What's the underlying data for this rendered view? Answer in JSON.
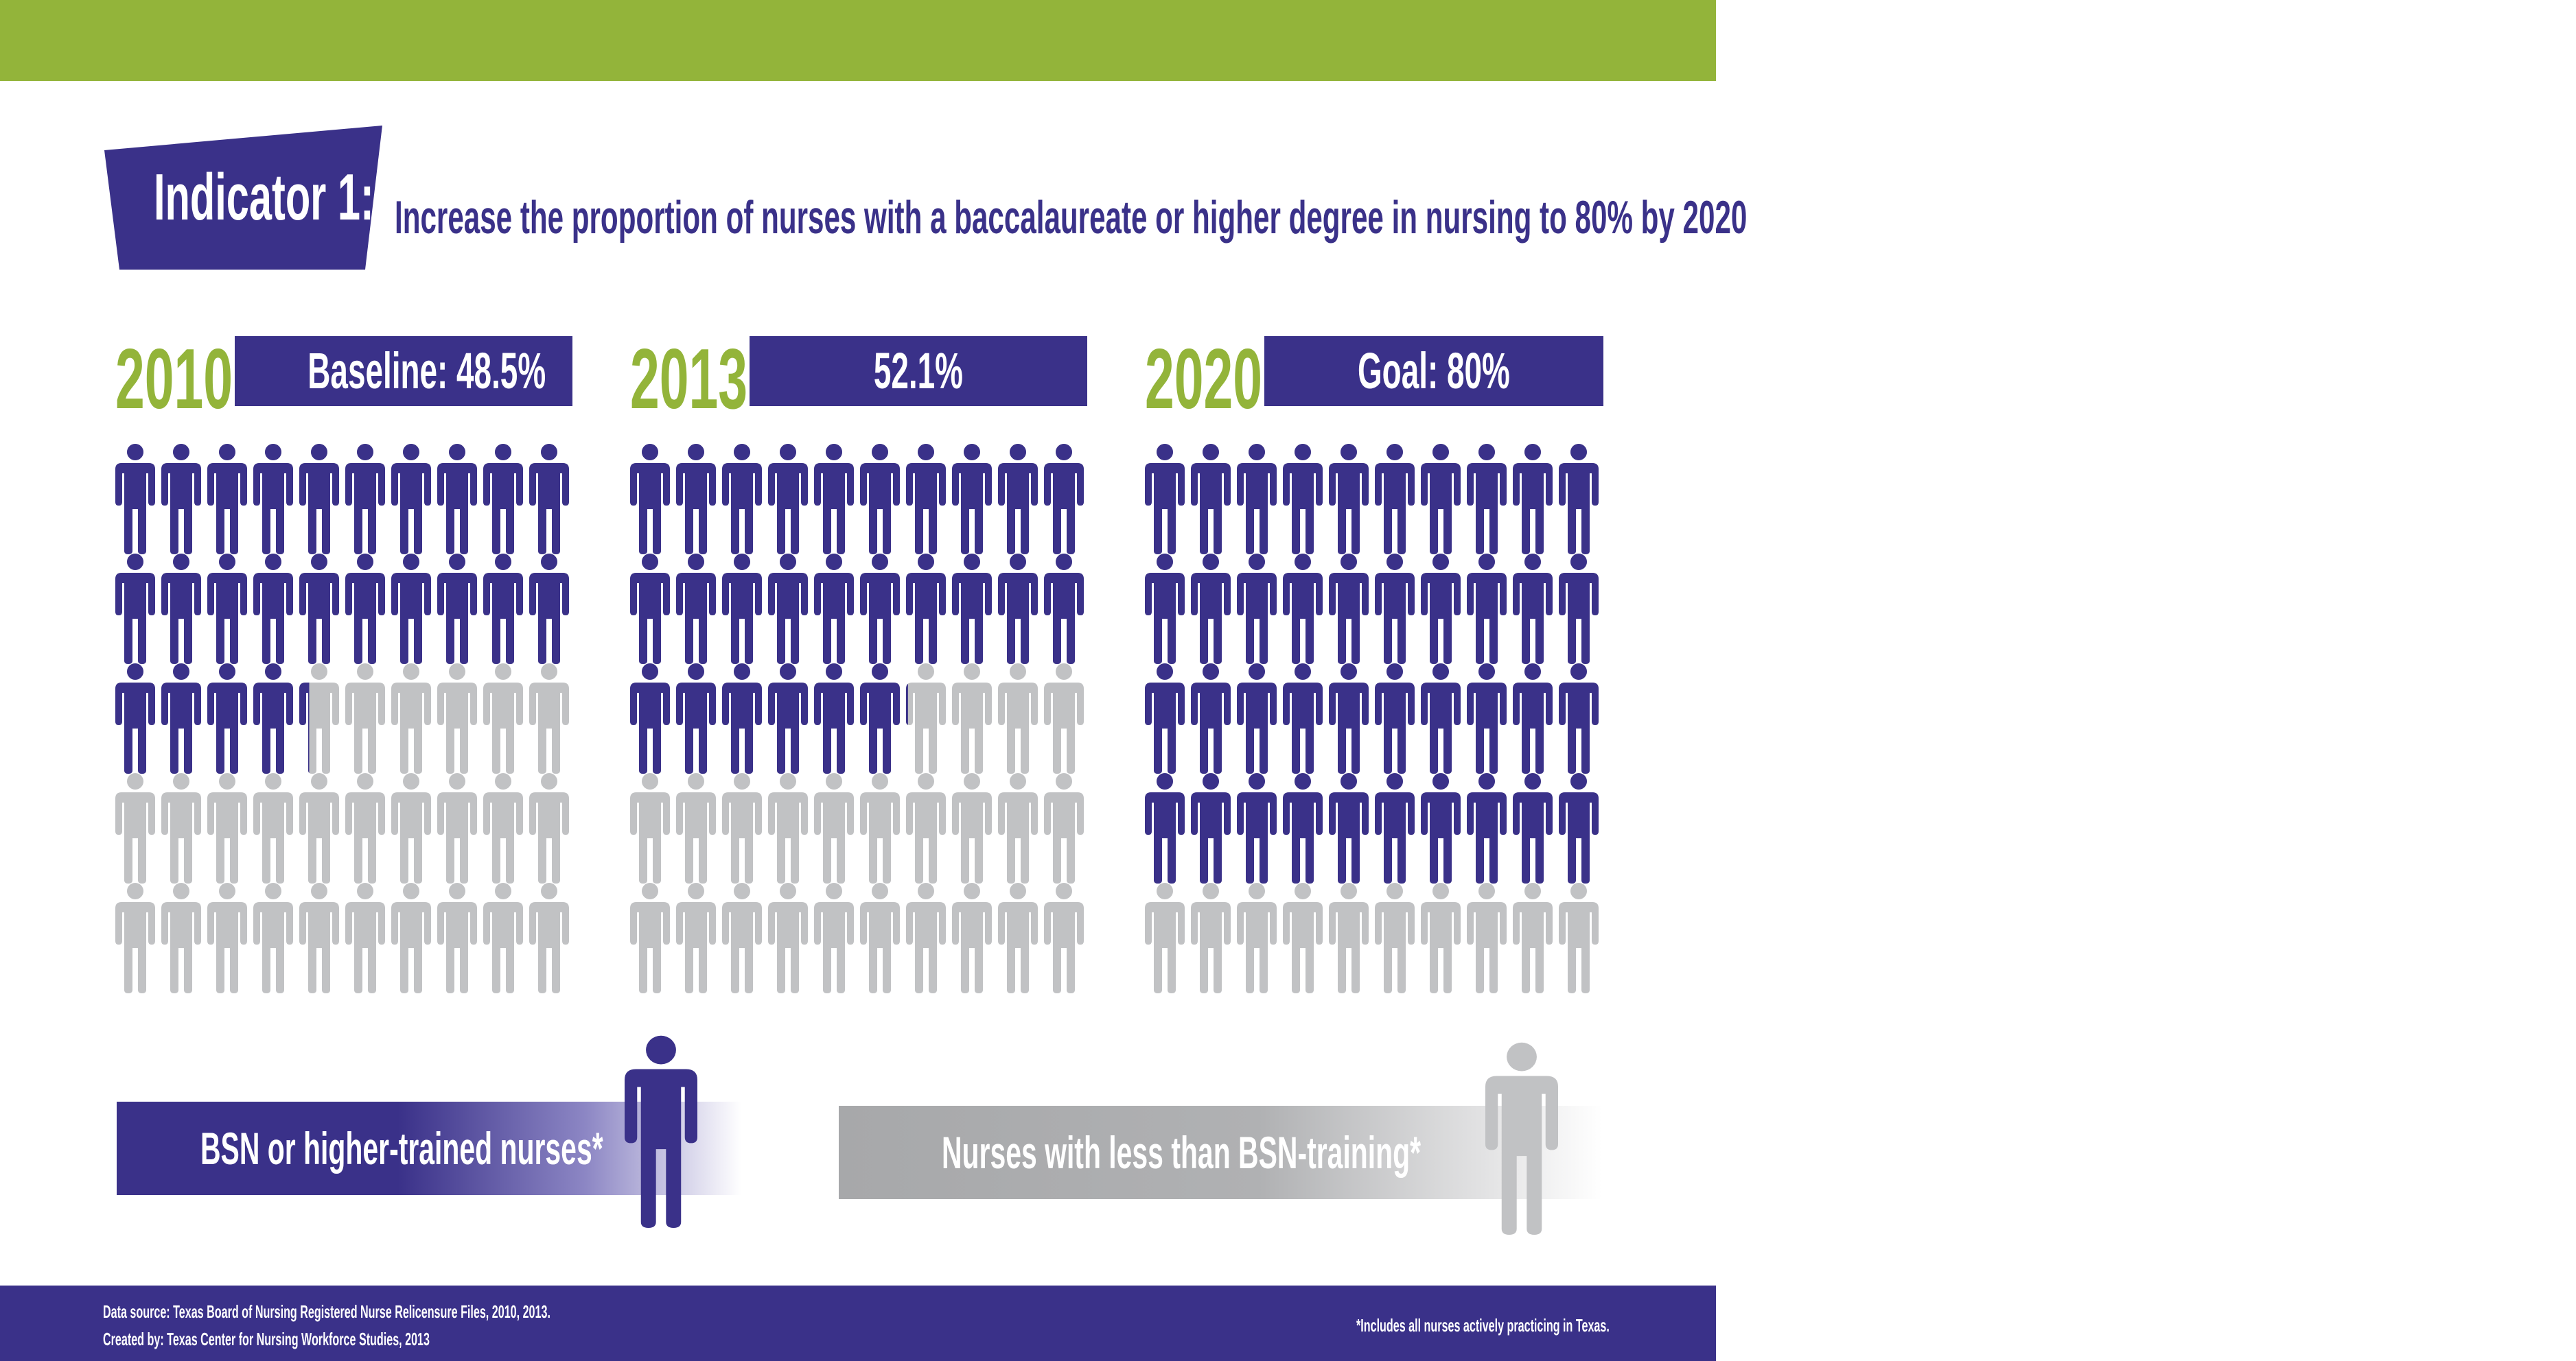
{
  "header": {
    "indicator_label": "Indicator 1:",
    "subtitle": "Increase the proportion of nurses with a baccalaureate or higher degree in nursing to 80% by 2020"
  },
  "colors": {
    "green": "#93b43a",
    "purple": "#3a3189",
    "gray": "#c1c2c4",
    "white": "#ffffff"
  },
  "chart_data": [
    {
      "type": "pictograph",
      "year": "2010",
      "label": "Baseline: 48.5%",
      "value_percent": 48.5,
      "icons_total": 50,
      "columns": 10
    },
    {
      "type": "pictograph",
      "year": "2013",
      "label": "52.1%",
      "value_percent": 52.1,
      "icons_total": 50,
      "columns": 10
    },
    {
      "type": "pictograph",
      "year": "2020",
      "label": "Goal: 80%",
      "value_percent": 80,
      "icons_total": 50,
      "columns": 10
    }
  ],
  "legend": {
    "bsn": "BSN or higher-trained nurses*",
    "non_bsn": "Nurses with less than BSN-training*"
  },
  "footer": {
    "data_source": "Data source: Texas Board of Nursing Registered Nurse Relicensure Files, 2010, 2013.",
    "created_by": "Created by: Texas Center for Nursing Workforce Studies, 2013",
    "note": "*Includes all nurses actively practicing in Texas."
  }
}
